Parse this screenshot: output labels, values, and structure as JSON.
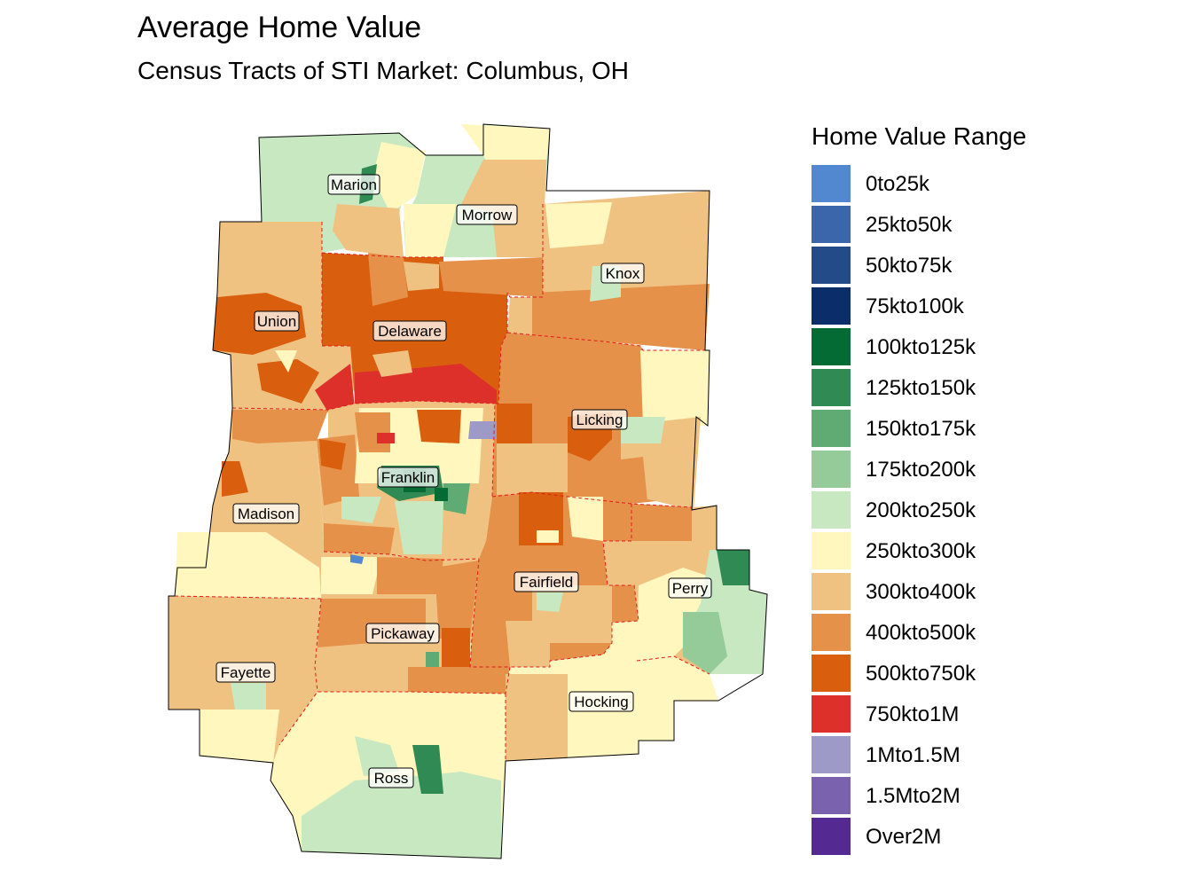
{
  "title": "Average Home Value",
  "subtitle": "Census Tracts of STI Market: Columbus, OH",
  "legend": {
    "title": "Home Value Range",
    "items": [
      {
        "label": "0to25k",
        "color": "#5288cf"
      },
      {
        "label": "25kto50k",
        "color": "#3b66ab"
      },
      {
        "label": "50kto75k",
        "color": "#224b87"
      },
      {
        "label": "75kto100k",
        "color": "#0b2d69"
      },
      {
        "label": "100kto125k",
        "color": "#046b34"
      },
      {
        "label": "125kto150k",
        "color": "#2f8a53"
      },
      {
        "label": "150kto175k",
        "color": "#60aa74"
      },
      {
        "label": "175kto200k",
        "color": "#94cb98"
      },
      {
        "label": "200kto250k",
        "color": "#c7e8c0"
      },
      {
        "label": "250kto300k",
        "color": "#fff7bd"
      },
      {
        "label": "300kto400k",
        "color": "#f0c282"
      },
      {
        "label": "400kto500k",
        "color": "#e6914a"
      },
      {
        "label": "500kto750k",
        "color": "#d95f0e"
      },
      {
        "label": "750kto1M",
        "color": "#dd302b"
      },
      {
        "label": "1Mto1.5M",
        "color": "#9e9ac8"
      },
      {
        "label": "1.5Mto2M",
        "color": "#7b62ae"
      },
      {
        "label": "Over2M",
        "color": "#542992"
      }
    ]
  },
  "counties": [
    {
      "name": "Marion"
    },
    {
      "name": "Morrow"
    },
    {
      "name": "Knox"
    },
    {
      "name": "Union"
    },
    {
      "name": "Delaware"
    },
    {
      "name": "Licking"
    },
    {
      "name": "Franklin"
    },
    {
      "name": "Madison"
    },
    {
      "name": "Fairfield"
    },
    {
      "name": "Perry"
    },
    {
      "name": "Pickaway"
    },
    {
      "name": "Fayette"
    },
    {
      "name": "Hocking"
    },
    {
      "name": "Ross"
    }
  ]
}
